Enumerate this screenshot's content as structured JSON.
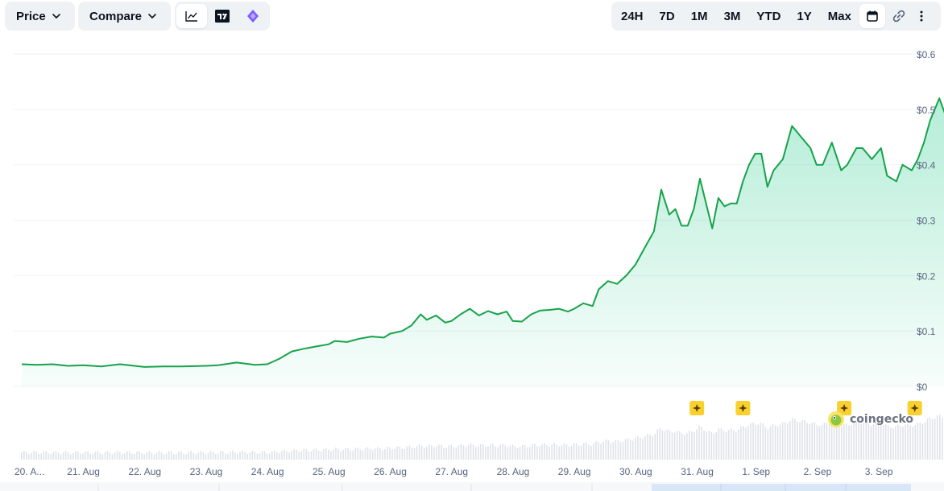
{
  "toolbar": {
    "price_label": "Price",
    "compare_label": "Compare",
    "chart_icons": [
      "line-chart-icon",
      "tradingview-icon",
      "ai-sparkle-icon"
    ],
    "ranges": [
      "24H",
      "7D",
      "1M",
      "3M",
      "YTD",
      "1Y",
      "Max"
    ],
    "extra_icons": [
      "calendar-icon",
      "link-icon",
      "more-vertical-icon"
    ]
  },
  "watermark": "coingecko",
  "colors": {
    "line": "#16a34a",
    "fill": "#16c784",
    "volume": "#dfe3e8",
    "event_badge": "#f8d12f",
    "grid": "#eff2f5",
    "axis_text": "#58667e"
  },
  "chart_data": {
    "type": "line",
    "series": [
      {
        "values": [
          [
            0.0,
            0.04
          ],
          [
            0.25,
            0.039
          ],
          [
            0.5,
            0.04
          ],
          [
            0.75,
            0.037
          ],
          [
            1.0,
            0.038
          ],
          [
            1.3,
            0.036
          ],
          [
            1.6,
            0.04
          ],
          [
            2.0,
            0.035
          ],
          [
            2.3,
            0.036
          ],
          [
            2.6,
            0.036
          ],
          [
            3.0,
            0.037
          ],
          [
            3.2,
            0.038
          ],
          [
            3.5,
            0.043
          ],
          [
            3.8,
            0.039
          ],
          [
            4.0,
            0.04
          ],
          [
            4.2,
            0.05
          ],
          [
            4.4,
            0.063
          ],
          [
            4.6,
            0.068
          ],
          [
            4.8,
            0.072
          ],
          [
            5.0,
            0.076
          ],
          [
            5.1,
            0.082
          ],
          [
            5.3,
            0.08
          ],
          [
            5.5,
            0.086
          ],
          [
            5.7,
            0.09
          ],
          [
            5.9,
            0.088
          ],
          [
            6.0,
            0.095
          ],
          [
            6.2,
            0.1
          ],
          [
            6.35,
            0.11
          ],
          [
            6.5,
            0.13
          ],
          [
            6.6,
            0.12
          ],
          [
            6.75,
            0.128
          ],
          [
            6.9,
            0.115
          ],
          [
            7.0,
            0.118
          ],
          [
            7.15,
            0.13
          ],
          [
            7.3,
            0.14
          ],
          [
            7.45,
            0.128
          ],
          [
            7.6,
            0.136
          ],
          [
            7.75,
            0.13
          ],
          [
            7.9,
            0.135
          ],
          [
            8.0,
            0.118
          ],
          [
            8.15,
            0.117
          ],
          [
            8.3,
            0.13
          ],
          [
            8.45,
            0.137
          ],
          [
            8.6,
            0.138
          ],
          [
            8.75,
            0.14
          ],
          [
            8.9,
            0.135
          ],
          [
            9.0,
            0.14
          ],
          [
            9.15,
            0.15
          ],
          [
            9.3,
            0.145
          ],
          [
            9.4,
            0.175
          ],
          [
            9.55,
            0.19
          ],
          [
            9.7,
            0.185
          ],
          [
            9.85,
            0.2
          ],
          [
            10.0,
            0.22
          ],
          [
            10.15,
            0.25
          ],
          [
            10.3,
            0.28
          ],
          [
            10.42,
            0.355
          ],
          [
            10.55,
            0.31
          ],
          [
            10.65,
            0.32
          ],
          [
            10.75,
            0.29
          ],
          [
            10.85,
            0.29
          ],
          [
            10.95,
            0.32
          ],
          [
            11.05,
            0.375
          ],
          [
            11.15,
            0.33
          ],
          [
            11.25,
            0.285
          ],
          [
            11.35,
            0.34
          ],
          [
            11.45,
            0.325
          ],
          [
            11.55,
            0.33
          ],
          [
            11.65,
            0.33
          ],
          [
            11.75,
            0.37
          ],
          [
            11.85,
            0.4
          ],
          [
            11.95,
            0.42
          ],
          [
            12.05,
            0.42
          ],
          [
            12.15,
            0.36
          ],
          [
            12.25,
            0.39
          ],
          [
            12.4,
            0.41
          ],
          [
            12.55,
            0.47
          ],
          [
            12.7,
            0.45
          ],
          [
            12.85,
            0.43
          ],
          [
            12.95,
            0.4
          ],
          [
            13.05,
            0.4
          ],
          [
            13.2,
            0.44
          ],
          [
            13.35,
            0.39
          ],
          [
            13.45,
            0.4
          ],
          [
            13.6,
            0.43
          ],
          [
            13.7,
            0.43
          ],
          [
            13.85,
            0.41
          ],
          [
            14.0,
            0.43
          ],
          [
            14.1,
            0.38
          ],
          [
            14.25,
            0.37
          ],
          [
            14.35,
            0.4
          ],
          [
            14.5,
            0.39
          ],
          [
            14.6,
            0.41
          ],
          [
            14.7,
            0.44
          ],
          [
            14.8,
            0.48
          ],
          [
            14.95,
            0.52
          ],
          [
            15.05,
            0.49
          ],
          [
            15.15,
            0.51
          ],
          [
            15.25,
            0.495
          ],
          [
            15.3,
            0.52
          ]
        ]
      }
    ],
    "x_ticks": [
      "20. A...",
      "21. Aug",
      "22. Aug",
      "23. Aug",
      "24. Aug",
      "25. Aug",
      "26. Aug",
      "27. Aug",
      "28. Aug",
      "29. Aug",
      "30. Aug",
      "31. Aug",
      "1. Sep",
      "2. Sep",
      "3. Sep"
    ],
    "y_ticks": [
      "$0",
      "$0.1",
      "$0.2",
      "$0.3",
      "$0.4",
      "$0.5",
      "$0.6"
    ],
    "ylim": [
      0,
      0.6
    ],
    "event_markers_x": [
      11.0,
      11.75,
      13.4,
      14.55
    ],
    "grid": true,
    "legend": "none"
  }
}
